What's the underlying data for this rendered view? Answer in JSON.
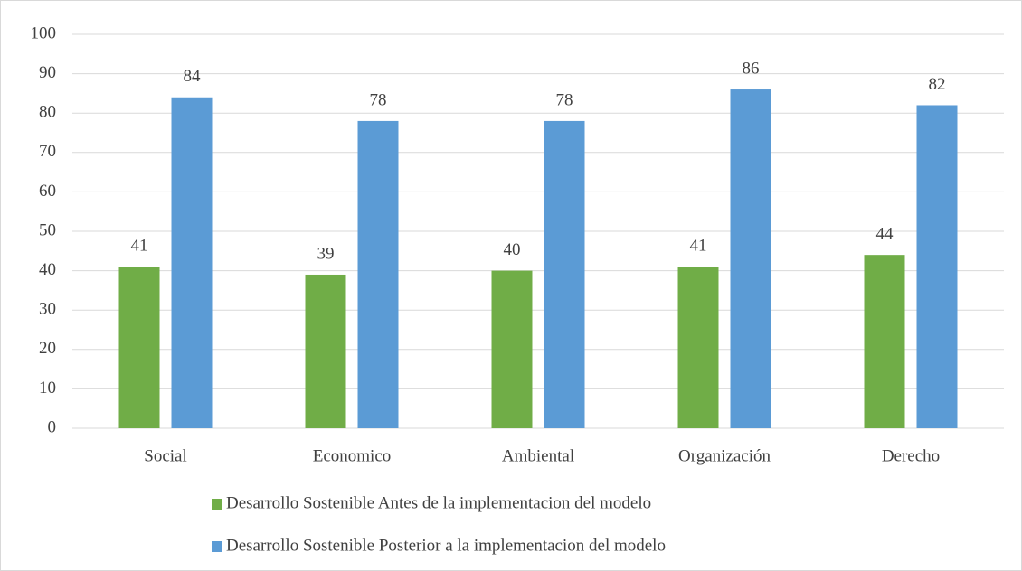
{
  "chart_data": {
    "type": "bar",
    "categories": [
      "Social",
      "Economico",
      "Ambiental",
      "Organización",
      "Derecho"
    ],
    "series": [
      {
        "name": "Desarrollo Sostenible Antes de la implementacion del modelo",
        "color": "#70ad47",
        "values": [
          41,
          39,
          40,
          41,
          44
        ]
      },
      {
        "name": "Desarrollo Sostenible Posterior a la implementacion del modelo",
        "color": "#5b9bd5",
        "values": [
          84,
          78,
          78,
          86,
          82
        ]
      }
    ],
    "ylim": [
      0,
      100
    ],
    "yticks": [
      0,
      10,
      20,
      30,
      40,
      50,
      60,
      70,
      80,
      90,
      100
    ],
    "grid": true,
    "legend": "bottom"
  }
}
